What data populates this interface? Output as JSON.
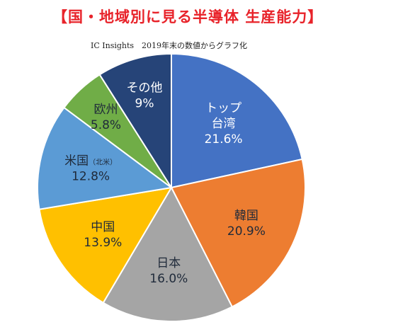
{
  "title": "【国・地域別に見る半導体 生産能力】",
  "subtitle": "IC Insights　2019年末の数値からグラフ化",
  "chart_data": {
    "type": "pie",
    "title": "【国・地域別に見る半導体 生産能力】",
    "subtitle": "IC Insights　2019年末の数値からグラフ化",
    "slices": [
      {
        "name": "トップ台湾",
        "lines": [
          "トップ",
          "台湾"
        ],
        "value": 21.6,
        "label": "21.6%",
        "color": "#4472c4",
        "text_color": "light"
      },
      {
        "name": "韓国",
        "lines": [
          "韓国"
        ],
        "value": 20.9,
        "label": "20.9%",
        "color": "#ed7d31",
        "text_color": "dark"
      },
      {
        "name": "日本",
        "lines": [
          "日本"
        ],
        "value": 16.0,
        "label": "16.0%",
        "color": "#a5a5a5",
        "text_color": "dark"
      },
      {
        "name": "中国",
        "lines": [
          "中国"
        ],
        "value": 13.9,
        "label": "13.9%",
        "color": "#ffc000",
        "text_color": "dark"
      },
      {
        "name": "米国（北米）",
        "lines": [
          "米国"
        ],
        "sub": "（北米）",
        "value": 12.8,
        "label": "12.8%",
        "color": "#5b9bd5",
        "text_color": "dark"
      },
      {
        "name": "欧州",
        "lines": [
          "欧州"
        ],
        "value": 5.8,
        "label": "5.8%",
        "color": "#70ad47",
        "text_color": "dark"
      },
      {
        "name": "その他",
        "lines": [
          "その他"
        ],
        "value": 9.0,
        "label": "9%",
        "color": "#264478",
        "text_color": "light"
      }
    ]
  }
}
